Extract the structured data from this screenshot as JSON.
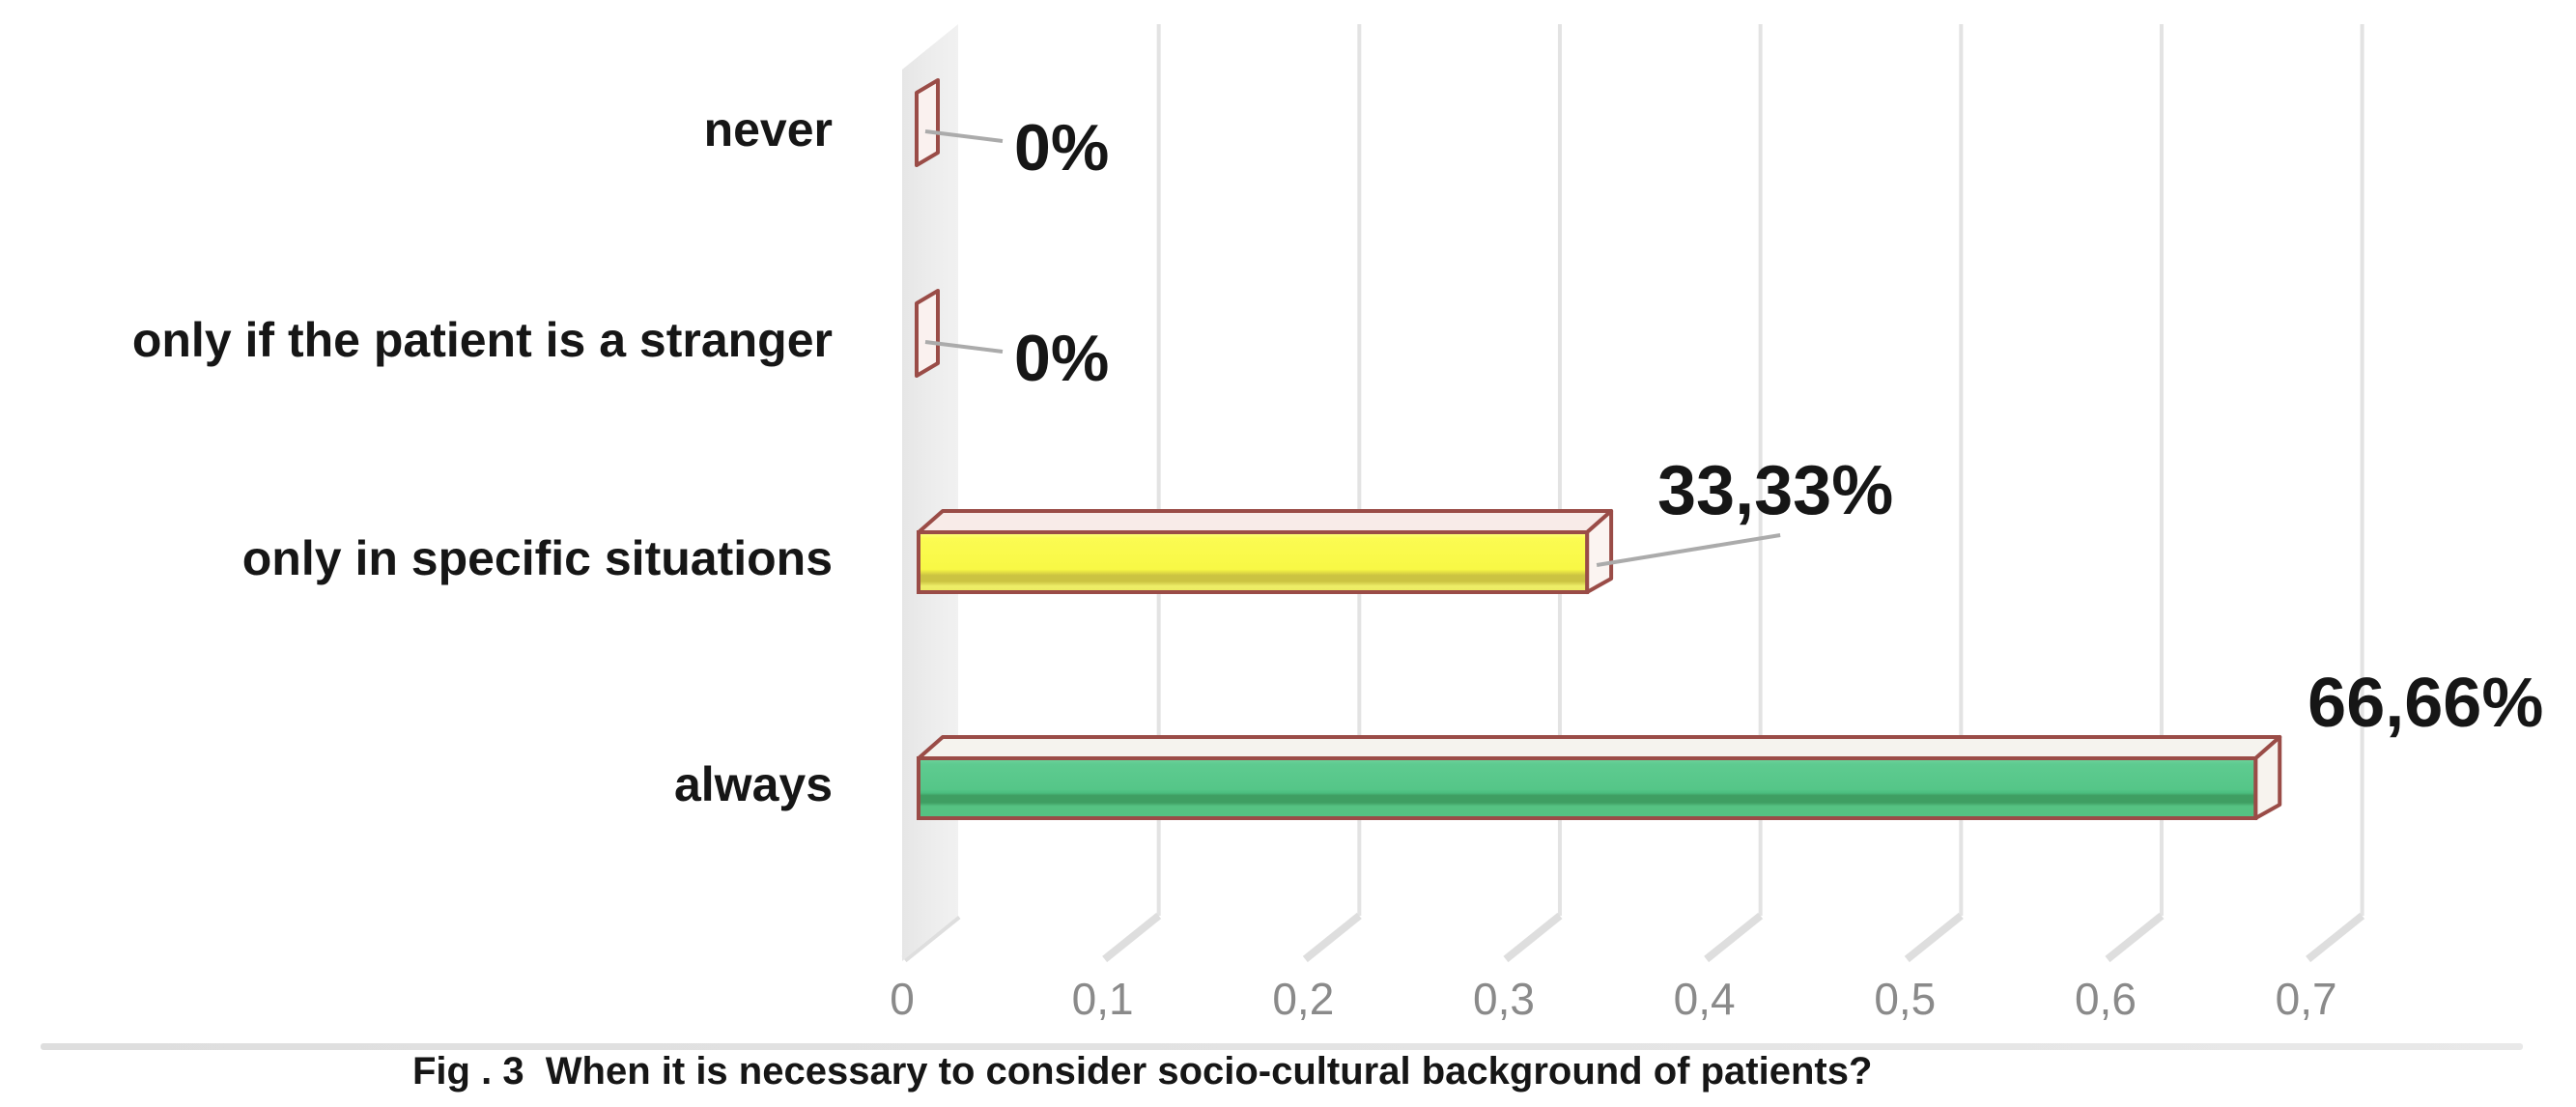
{
  "chart_data": {
    "type": "bar",
    "style": "3d-horizontal-bars",
    "title": "",
    "xlabel": "",
    "ylabel": "",
    "categories": [
      "never",
      "only if the patient is a stranger",
      "only in specific situations",
      "always"
    ],
    "values": [
      0,
      0,
      0.3333,
      0.6666
    ],
    "value_labels": [
      "0%",
      "0%",
      "33,33%",
      "66,66%"
    ],
    "x_ticks": [
      "0",
      "0,1",
      "0,2",
      "0,3",
      "0,4",
      "0,5",
      "0,6",
      "0,7"
    ],
    "x_tick_values": [
      0,
      0.1,
      0.2,
      0.3,
      0.4,
      0.5,
      0.6,
      0.7
    ],
    "xlim": [
      0,
      0.7
    ],
    "grid": true,
    "legend": false,
    "bar_colors": [
      "#faf1ef",
      "#faf1ef",
      "#fbfb4d",
      "#55c98b"
    ],
    "outline_color": "#9a4c47",
    "gridline_color": "#e3e3e3",
    "wall_color": "#ebebeb",
    "leader_line_color": "#ababab",
    "tick_color": "#8a8a8a",
    "text_color": "#161616",
    "background_color": "#ffffff",
    "caption": "Fig . 3  When it is necessary to consider socio-cultural background of patients?"
  }
}
